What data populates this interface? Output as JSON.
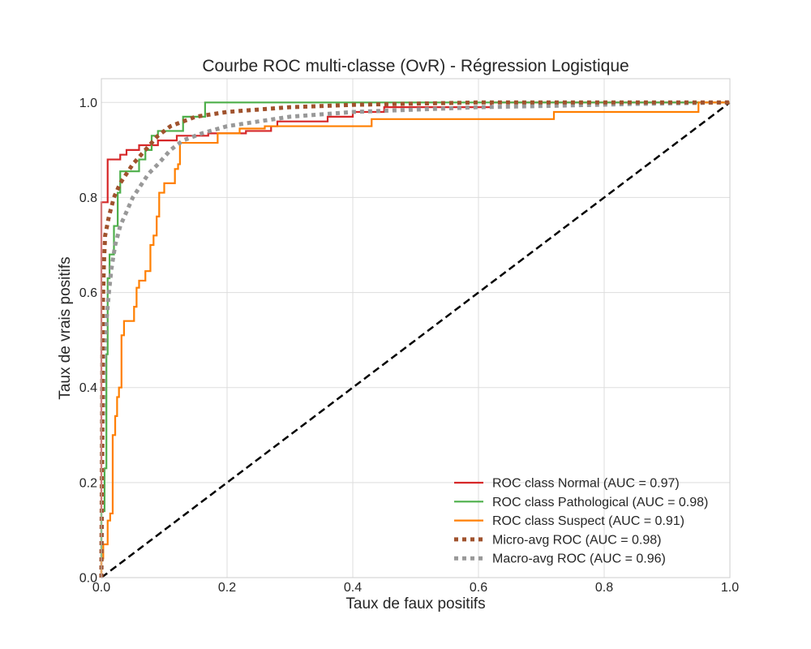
{
  "chart_data": {
    "type": "line",
    "title": "Courbe ROC multi-classe (OvR) - Régression Logistique",
    "xlabel": "Taux de faux positifs",
    "ylabel": "Taux de vrais positifs",
    "xlim": [
      0,
      1
    ],
    "ylim": [
      0,
      1.05
    ],
    "x_ticks": [
      0.0,
      0.2,
      0.4,
      0.6,
      0.8,
      1.0
    ],
    "y_ticks": [
      0.0,
      0.2,
      0.4,
      0.6,
      0.8,
      1.0
    ],
    "x_tick_labels": [
      "0.0",
      "0.2",
      "0.4",
      "0.6",
      "0.8",
      "1.0"
    ],
    "y_tick_labels": [
      "0.0",
      "0.2",
      "0.4",
      "0.6",
      "0.8",
      "1.0"
    ],
    "grid": true,
    "legend_position": "lower-right",
    "series": [
      {
        "name": "ROC class Normal (AUC = 0.97)",
        "color": "#d62728",
        "style": "solid",
        "points": [
          [
            0,
            0
          ],
          [
            0,
            0.79
          ],
          [
            0.01,
            0.79
          ],
          [
            0.01,
            0.88
          ],
          [
            0.03,
            0.88
          ],
          [
            0.03,
            0.89
          ],
          [
            0.04,
            0.89
          ],
          [
            0.04,
            0.9
          ],
          [
            0.06,
            0.9
          ],
          [
            0.06,
            0.91
          ],
          [
            0.09,
            0.91
          ],
          [
            0.09,
            0.92
          ],
          [
            0.12,
            0.92
          ],
          [
            0.12,
            0.93
          ],
          [
            0.17,
            0.93
          ],
          [
            0.17,
            0.935
          ],
          [
            0.23,
            0.935
          ],
          [
            0.23,
            0.94
          ],
          [
            0.27,
            0.94
          ],
          [
            0.27,
            0.95
          ],
          [
            0.28,
            0.95
          ],
          [
            0.28,
            0.96
          ],
          [
            0.36,
            0.96
          ],
          [
            0.36,
            0.97
          ],
          [
            0.4,
            0.97
          ],
          [
            0.4,
            0.98
          ],
          [
            0.45,
            0.98
          ],
          [
            0.45,
            0.99
          ],
          [
            0.62,
            0.99
          ],
          [
            0.62,
            1.0
          ],
          [
            1.0,
            1.0
          ]
        ]
      },
      {
        "name": "ROC class Pathological (AUC = 0.98)",
        "color": "#4daf4a",
        "style": "solid",
        "points": [
          [
            0,
            0
          ],
          [
            0,
            0.14
          ],
          [
            0.005,
            0.14
          ],
          [
            0.005,
            0.23
          ],
          [
            0.008,
            0.23
          ],
          [
            0.008,
            0.47
          ],
          [
            0.01,
            0.47
          ],
          [
            0.01,
            0.63
          ],
          [
            0.013,
            0.63
          ],
          [
            0.013,
            0.68
          ],
          [
            0.02,
            0.68
          ],
          [
            0.02,
            0.74
          ],
          [
            0.026,
            0.74
          ],
          [
            0.026,
            0.81
          ],
          [
            0.03,
            0.81
          ],
          [
            0.03,
            0.855
          ],
          [
            0.06,
            0.855
          ],
          [
            0.06,
            0.88
          ],
          [
            0.07,
            0.88
          ],
          [
            0.07,
            0.9
          ],
          [
            0.08,
            0.9
          ],
          [
            0.08,
            0.93
          ],
          [
            0.09,
            0.93
          ],
          [
            0.09,
            0.94
          ],
          [
            0.13,
            0.94
          ],
          [
            0.13,
            0.97
          ],
          [
            0.165,
            0.97
          ],
          [
            0.165,
            1.0
          ],
          [
            1.0,
            1.0
          ]
        ]
      },
      {
        "name": "ROC class Suspect (AUC = 0.91)",
        "color": "#ff7f00",
        "style": "solid",
        "points": [
          [
            0,
            0
          ],
          [
            0,
            0.04
          ],
          [
            0.003,
            0.04
          ],
          [
            0.003,
            0.07
          ],
          [
            0.01,
            0.07
          ],
          [
            0.01,
            0.12
          ],
          [
            0.014,
            0.12
          ],
          [
            0.014,
            0.135
          ],
          [
            0.018,
            0.135
          ],
          [
            0.018,
            0.3
          ],
          [
            0.022,
            0.3
          ],
          [
            0.022,
            0.34
          ],
          [
            0.025,
            0.34
          ],
          [
            0.025,
            0.38
          ],
          [
            0.028,
            0.38
          ],
          [
            0.028,
            0.4
          ],
          [
            0.032,
            0.4
          ],
          [
            0.032,
            0.51
          ],
          [
            0.036,
            0.51
          ],
          [
            0.036,
            0.54
          ],
          [
            0.052,
            0.54
          ],
          [
            0.052,
            0.57
          ],
          [
            0.056,
            0.57
          ],
          [
            0.056,
            0.61
          ],
          [
            0.06,
            0.61
          ],
          [
            0.06,
            0.625
          ],
          [
            0.07,
            0.625
          ],
          [
            0.07,
            0.645
          ],
          [
            0.078,
            0.645
          ],
          [
            0.078,
            0.7
          ],
          [
            0.083,
            0.7
          ],
          [
            0.083,
            0.72
          ],
          [
            0.088,
            0.72
          ],
          [
            0.088,
            0.76
          ],
          [
            0.092,
            0.76
          ],
          [
            0.092,
            0.81
          ],
          [
            0.1,
            0.81
          ],
          [
            0.1,
            0.83
          ],
          [
            0.117,
            0.83
          ],
          [
            0.117,
            0.86
          ],
          [
            0.122,
            0.86
          ],
          [
            0.122,
            0.87
          ],
          [
            0.125,
            0.87
          ],
          [
            0.125,
            0.915
          ],
          [
            0.185,
            0.915
          ],
          [
            0.185,
            0.935
          ],
          [
            0.22,
            0.935
          ],
          [
            0.22,
            0.945
          ],
          [
            0.26,
            0.945
          ],
          [
            0.26,
            0.95
          ],
          [
            0.43,
            0.95
          ],
          [
            0.43,
            0.965
          ],
          [
            0.72,
            0.965
          ],
          [
            0.72,
            0.98
          ],
          [
            0.95,
            0.98
          ],
          [
            0.95,
            1.0
          ],
          [
            1.0,
            1.0
          ]
        ]
      },
      {
        "name": "Micro-avg ROC (AUC = 0.98)",
        "color": "#a0522d",
        "style": "dotted",
        "points": [
          [
            0,
            0
          ],
          [
            0.002,
            0.55
          ],
          [
            0.004,
            0.66
          ],
          [
            0.006,
            0.72
          ],
          [
            0.012,
            0.76
          ],
          [
            0.02,
            0.8
          ],
          [
            0.03,
            0.83
          ],
          [
            0.04,
            0.85
          ],
          [
            0.05,
            0.87
          ],
          [
            0.07,
            0.9
          ],
          [
            0.09,
            0.93
          ],
          [
            0.11,
            0.95
          ],
          [
            0.15,
            0.97
          ],
          [
            0.2,
            0.98
          ],
          [
            0.25,
            0.985
          ],
          [
            0.3,
            0.99
          ],
          [
            0.4,
            0.995
          ],
          [
            0.6,
            1.0
          ],
          [
            1.0,
            1.0
          ]
        ]
      },
      {
        "name": "Macro-avg ROC (AUC = 0.96)",
        "color": "#999999",
        "style": "dotted",
        "points": [
          [
            0,
            0
          ],
          [
            0.002,
            0.3
          ],
          [
            0.005,
            0.48
          ],
          [
            0.008,
            0.54
          ],
          [
            0.012,
            0.6
          ],
          [
            0.016,
            0.65
          ],
          [
            0.022,
            0.7
          ],
          [
            0.03,
            0.74
          ],
          [
            0.04,
            0.77
          ],
          [
            0.05,
            0.8
          ],
          [
            0.06,
            0.82
          ],
          [
            0.075,
            0.85
          ],
          [
            0.09,
            0.87
          ],
          [
            0.11,
            0.9
          ],
          [
            0.13,
            0.92
          ],
          [
            0.16,
            0.935
          ],
          [
            0.2,
            0.95
          ],
          [
            0.25,
            0.96
          ],
          [
            0.3,
            0.97
          ],
          [
            0.4,
            0.98
          ],
          [
            0.5,
            0.985
          ],
          [
            0.6,
            0.99
          ],
          [
            0.72,
            0.993
          ],
          [
            0.85,
            0.997
          ],
          [
            1.0,
            1.0
          ]
        ]
      },
      {
        "name": "",
        "color": "#000000",
        "style": "dashed",
        "points": [
          [
            0,
            0
          ],
          [
            1,
            1
          ]
        ]
      }
    ]
  }
}
